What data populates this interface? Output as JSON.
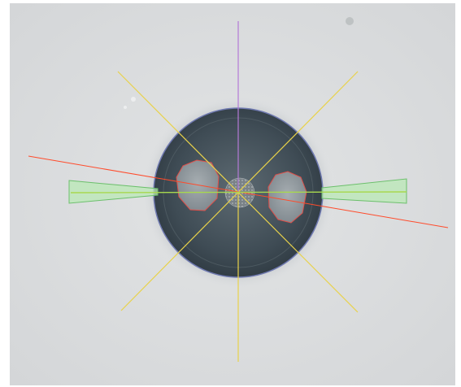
{
  "image_view": {
    "background_color": "#dadcdd",
    "specimen": {
      "name": "fiber-end-face",
      "cladding_color": "#3d4a52",
      "core_color": "#8a9094",
      "stress_rod_color": "#9ca3a7"
    },
    "overlays": {
      "vertical_axis_color": "#b47ad6",
      "diagonal_axis_color": "#e8d24a",
      "tilt_axis_color": "#ff4b2b",
      "horizontal_axis_color": "#a8d84e",
      "cladding_outline_color": "#6f79b0",
      "stress_rod_outline_color": "#e0504a",
      "alignment_wedge_fill": "#b9e8b5",
      "alignment_wedge_stroke": "#6bbf6b"
    }
  }
}
